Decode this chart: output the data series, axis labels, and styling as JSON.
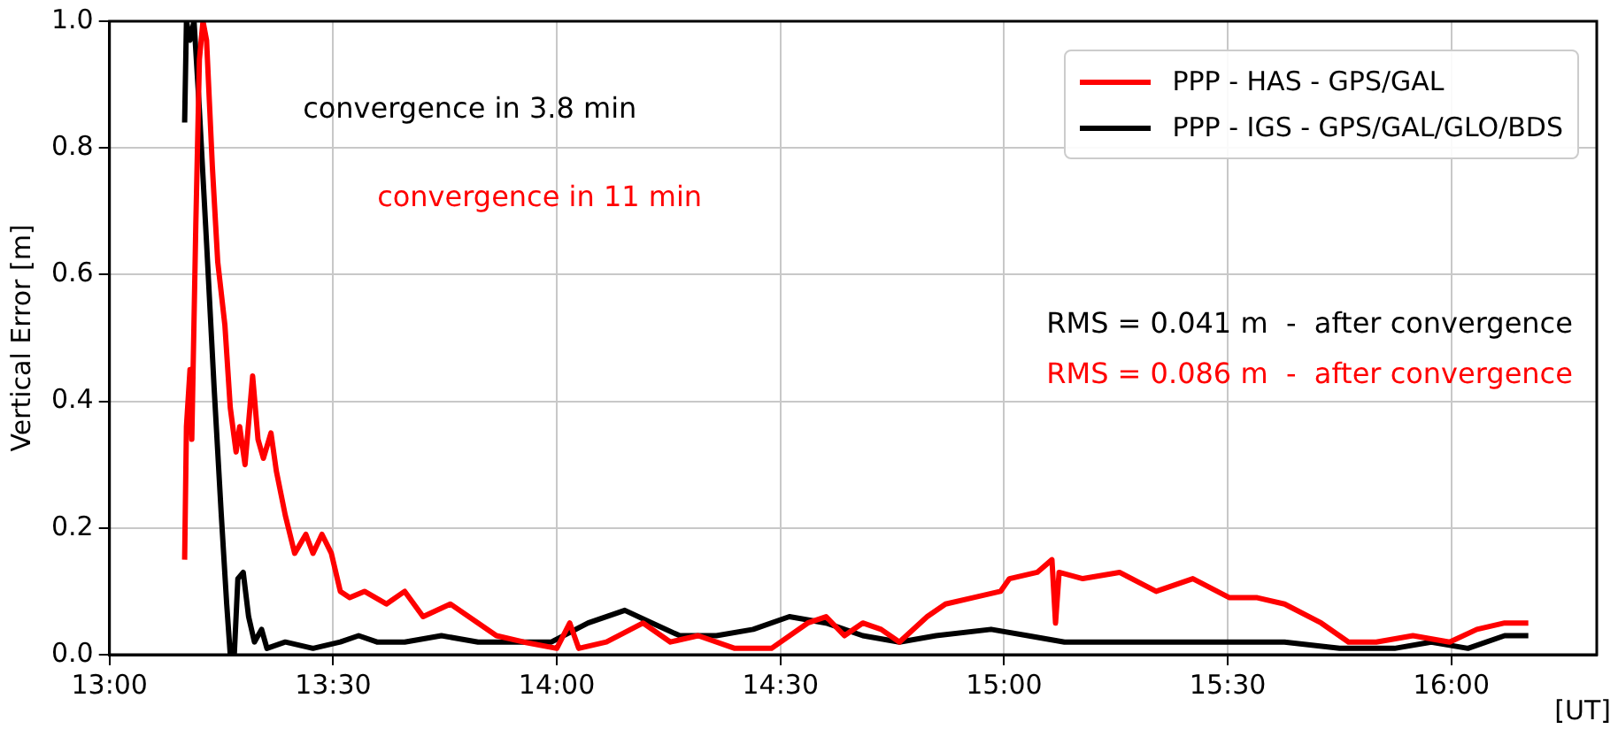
{
  "chart_data": {
    "type": "line",
    "ylabel": "Vertical Error [m]",
    "xlabel": "[UT]",
    "annotations": [
      "convergence in 3.8 min",
      "convergence in 11 min",
      "RMS = 0.041 m  -  after convergence",
      "RMS = 0.086 m  -  after convergence"
    ],
    "xlim": [
      13,
      16.325
    ],
    "xticks": [
      {
        "value": 13,
        "label": "13:00"
      },
      {
        "value": 13.5,
        "label": "13:30"
      },
      {
        "value": 14,
        "label": "14:00"
      },
      {
        "value": 14.5,
        "label": "14:30"
      },
      {
        "value": 15,
        "label": "15:00"
      },
      {
        "value": 15.5,
        "label": "15:30"
      },
      {
        "value": 16,
        "label": "16:00"
      }
    ],
    "ylim": [
      0,
      1
    ],
    "yticks": [
      {
        "value": 0,
        "label": "0.0"
      },
      0.2,
      0.4,
      0.6,
      0.8,
      {
        "value": 1,
        "label": "1.0"
      }
    ],
    "grid": true,
    "legend": "top right",
    "line_style": "solid",
    "marker": "none",
    "series": [
      {
        "name": "PPP - HAS - GPS/GAL",
        "color": "#ff0000",
        "x": [
          13.168,
          13.172,
          13.18,
          13.184,
          13.193,
          13.201,
          13.209,
          13.217,
          13.23,
          13.242,
          13.258,
          13.27,
          13.283,
          13.291,
          13.303,
          13.32,
          13.332,
          13.344,
          13.361,
          13.373,
          13.393,
          13.414,
          13.439,
          13.455,
          13.475,
          13.496,
          13.516,
          13.537,
          13.57,
          13.619,
          13.66,
          13.701,
          13.762,
          13.824,
          13.865,
          13.926,
          14.0,
          14.029,
          14.049,
          14.111,
          14.193,
          14.254,
          14.316,
          14.398,
          14.48,
          14.561,
          14.602,
          14.643,
          14.684,
          14.725,
          14.766,
          14.828,
          14.869,
          14.93,
          14.992,
          15.012,
          15.074,
          15.107,
          15.115,
          15.123,
          15.176,
          15.258,
          15.34,
          15.422,
          15.504,
          15.566,
          15.627,
          15.709,
          15.77,
          15.832,
          15.914,
          15.996,
          16.057,
          16.119,
          16.172
        ],
        "values": [
          0.15,
          0.36,
          0.45,
          0.34,
          0.68,
          0.94,
          1.0,
          0.97,
          0.77,
          0.62,
          0.52,
          0.39,
          0.32,
          0.36,
          0.3,
          0.44,
          0.34,
          0.31,
          0.35,
          0.29,
          0.22,
          0.16,
          0.19,
          0.16,
          0.19,
          0.16,
          0.1,
          0.09,
          0.1,
          0.08,
          0.1,
          0.06,
          0.08,
          0.05,
          0.03,
          0.02,
          0.01,
          0.05,
          0.01,
          0.02,
          0.05,
          0.02,
          0.03,
          0.01,
          0.01,
          0.05,
          0.06,
          0.03,
          0.05,
          0.04,
          0.02,
          0.06,
          0.08,
          0.09,
          0.1,
          0.12,
          0.13,
          0.15,
          0.05,
          0.13,
          0.12,
          0.13,
          0.1,
          0.12,
          0.09,
          0.09,
          0.08,
          0.05,
          0.02,
          0.02,
          0.03,
          0.02,
          0.04,
          0.05,
          0.05
        ]
      },
      {
        "name": "PPP - IGS - GPS/GAL/GLO/BDS",
        "color": "#000000",
        "x": [
          13.168,
          13.172,
          13.18,
          13.189,
          13.201,
          13.217,
          13.234,
          13.25,
          13.262,
          13.27,
          13.279,
          13.287,
          13.299,
          13.311,
          13.324,
          13.34,
          13.352,
          13.393,
          13.455,
          13.516,
          13.557,
          13.598,
          13.66,
          13.742,
          13.824,
          13.906,
          13.988,
          14.07,
          14.152,
          14.213,
          14.275,
          14.357,
          14.439,
          14.52,
          14.602,
          14.684,
          14.766,
          14.848,
          14.971,
          15.053,
          15.135,
          15.258,
          15.381,
          15.504,
          15.627,
          15.75,
          15.873,
          15.955,
          16.037,
          16.119,
          16.172
        ],
        "values": [
          0.84,
          1.0,
          0.97,
          1.0,
          0.86,
          0.65,
          0.42,
          0.22,
          0.08,
          0.0,
          0.0,
          0.12,
          0.13,
          0.06,
          0.02,
          0.04,
          0.01,
          0.02,
          0.01,
          0.02,
          0.03,
          0.02,
          0.02,
          0.03,
          0.02,
          0.02,
          0.02,
          0.05,
          0.07,
          0.05,
          0.03,
          0.03,
          0.04,
          0.06,
          0.05,
          0.03,
          0.02,
          0.03,
          0.04,
          0.03,
          0.02,
          0.02,
          0.02,
          0.02,
          0.02,
          0.01,
          0.01,
          0.02,
          0.01,
          0.03,
          0.03
        ]
      }
    ]
  }
}
